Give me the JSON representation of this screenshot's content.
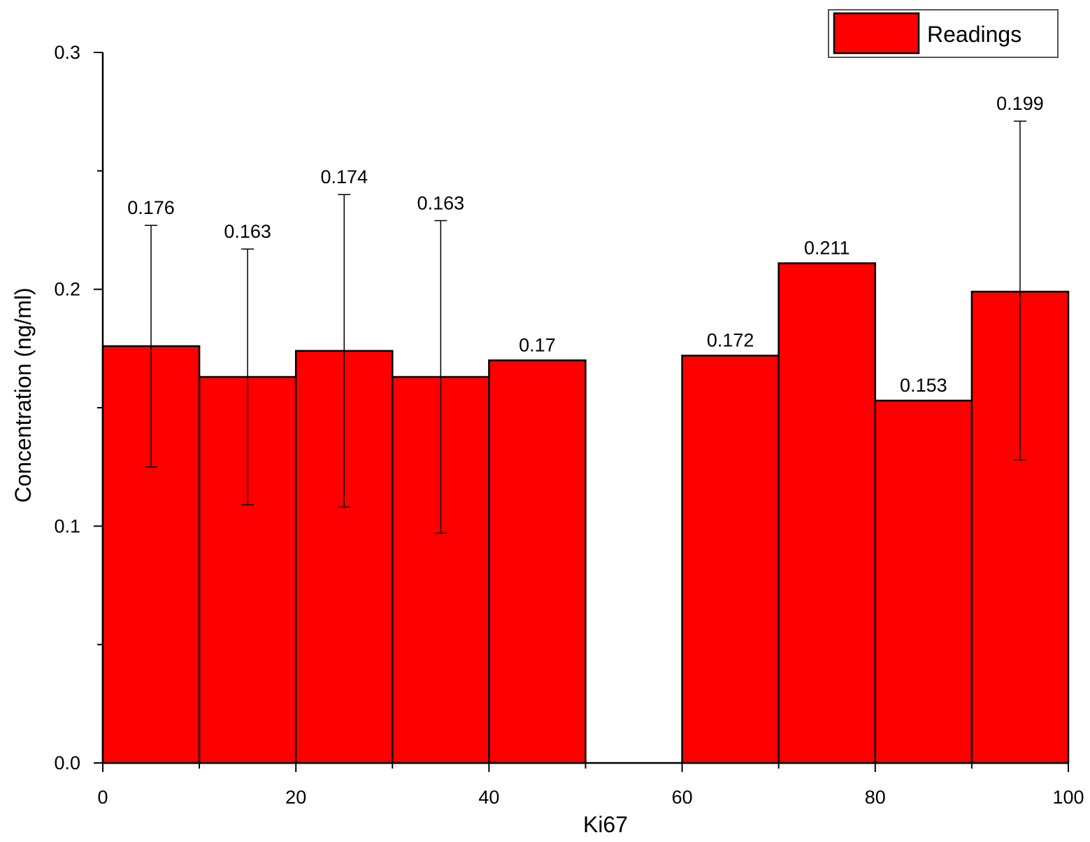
{
  "chart_data": {
    "type": "bar",
    "bin_width": 10,
    "bars": [
      {
        "x": 5,
        "value": 0.176,
        "label": "0.176",
        "err_low": 0.125,
        "err_high": 0.227
      },
      {
        "x": 15,
        "value": 0.163,
        "label": "0.163",
        "err_low": 0.109,
        "err_high": 0.217
      },
      {
        "x": 25,
        "value": 0.174,
        "label": "0.174",
        "err_low": 0.108,
        "err_high": 0.24
      },
      {
        "x": 35,
        "value": 0.163,
        "label": "0.163",
        "err_low": 0.097,
        "err_high": 0.229
      },
      {
        "x": 45,
        "value": 0.17,
        "label": "0.17"
      },
      {
        "x": 65,
        "value": 0.172,
        "label": "0.172"
      },
      {
        "x": 75,
        "value": 0.211,
        "label": "0.211"
      },
      {
        "x": 85,
        "value": 0.153,
        "label": "0.153"
      },
      {
        "x": 95,
        "value": 0.199,
        "label": "0.199",
        "err_low": 0.128,
        "err_high": 0.271
      }
    ],
    "xlabel": "Ki67",
    "ylabel": "Concentration (ng/ml)",
    "xlim": [
      0,
      100
    ],
    "ylim": [
      0,
      0.3
    ],
    "xticks": [
      {
        "value": 0,
        "label": "0"
      },
      {
        "value": 20,
        "label": "20"
      },
      {
        "value": 40,
        "label": "40"
      },
      {
        "value": 60,
        "label": "60"
      },
      {
        "value": 80,
        "label": "80"
      },
      {
        "value": 100,
        "label": "100"
      }
    ],
    "xminor": [
      10,
      30,
      50,
      70,
      90
    ],
    "yticks": [
      {
        "value": 0.0,
        "label": "0.0"
      },
      {
        "value": 0.1,
        "label": "0.1"
      },
      {
        "value": 0.2,
        "label": "0.2"
      },
      {
        "value": 0.3,
        "label": "0.3"
      }
    ],
    "yminor": [
      0.05,
      0.15,
      0.25
    ],
    "legend": {
      "label": "Readings",
      "position": "top-right"
    },
    "bar_color": "#ff0000",
    "edge_color": "#000000",
    "grid": false
  }
}
